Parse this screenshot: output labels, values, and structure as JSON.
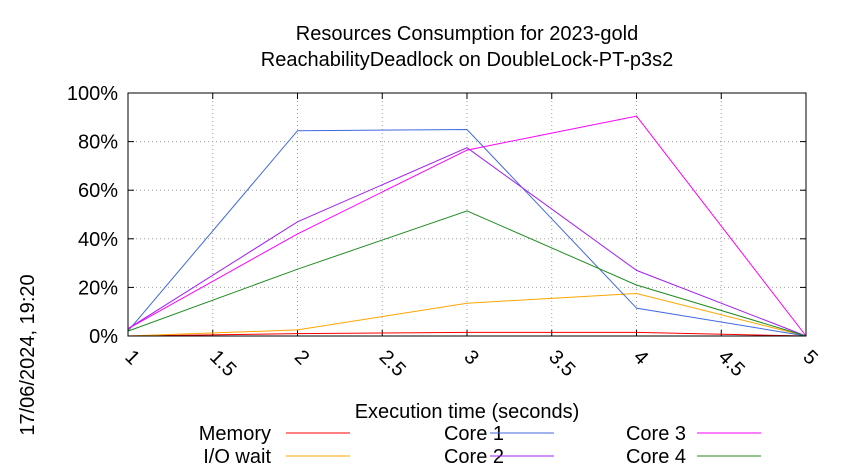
{
  "chart_data": {
    "type": "line",
    "title": "Resources Consumption for 2023-gold",
    "subtitle": "ReachabilityDeadlock on DoubleLock-PT-p3s2",
    "xlabel": "Execution time (seconds)",
    "ylabel": "",
    "side_label": "17/06/2024, 19:20",
    "xlim": [
      1,
      5
    ],
    "ylim": [
      0,
      100
    ],
    "xticks": [
      "1",
      "1.5",
      "2",
      "2.5",
      "3",
      "3.5",
      "4",
      "4.5",
      "5"
    ],
    "yticks": [
      "0%",
      "20%",
      "40%",
      "60%",
      "80%",
      "100%"
    ],
    "grid": true,
    "legend_position": "bottom",
    "series": [
      {
        "name": "Memory",
        "color": "#ff0000",
        "x": [
          1,
          2,
          3,
          4,
          5
        ],
        "y": [
          0,
          1,
          1.5,
          1.5,
          0
        ]
      },
      {
        "name": "I/O wait",
        "color": "#ffa500",
        "x": [
          1,
          2,
          3,
          4,
          5
        ],
        "y": [
          0,
          2.5,
          13.5,
          17.5,
          0
        ]
      },
      {
        "name": "Core 1",
        "color": "#4169e1",
        "x": [
          1,
          2,
          3,
          4,
          5
        ],
        "y": [
          2,
          84.5,
          85,
          11.5,
          0
        ]
      },
      {
        "name": "Core 2",
        "color": "#a020f0",
        "x": [
          1,
          2,
          3,
          4,
          5
        ],
        "y": [
          3,
          47,
          77.5,
          27,
          0
        ]
      },
      {
        "name": "Core 3",
        "color": "#ff00ff",
        "x": [
          1,
          2,
          3,
          4,
          5
        ],
        "y": [
          3,
          42,
          76.5,
          90.5,
          0
        ]
      },
      {
        "name": "Core 4",
        "color": "#228b22",
        "x": [
          1,
          2,
          3,
          4,
          5
        ],
        "y": [
          2,
          27.5,
          51.5,
          21,
          0
        ]
      }
    ]
  }
}
